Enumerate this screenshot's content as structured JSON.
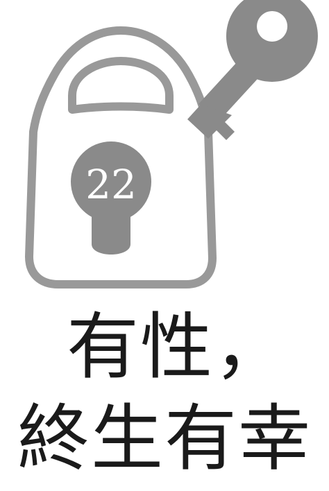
{
  "illustration": {
    "lock_number": "22",
    "colors": {
      "lock_outline": "#999999",
      "keyhole": "#8a8a8a",
      "key": "#8a8a8a",
      "number_text": "#ffffff"
    }
  },
  "headline": {
    "line1": "有性，",
    "line2": "終生有幸",
    "color": "#1a1a1a"
  }
}
